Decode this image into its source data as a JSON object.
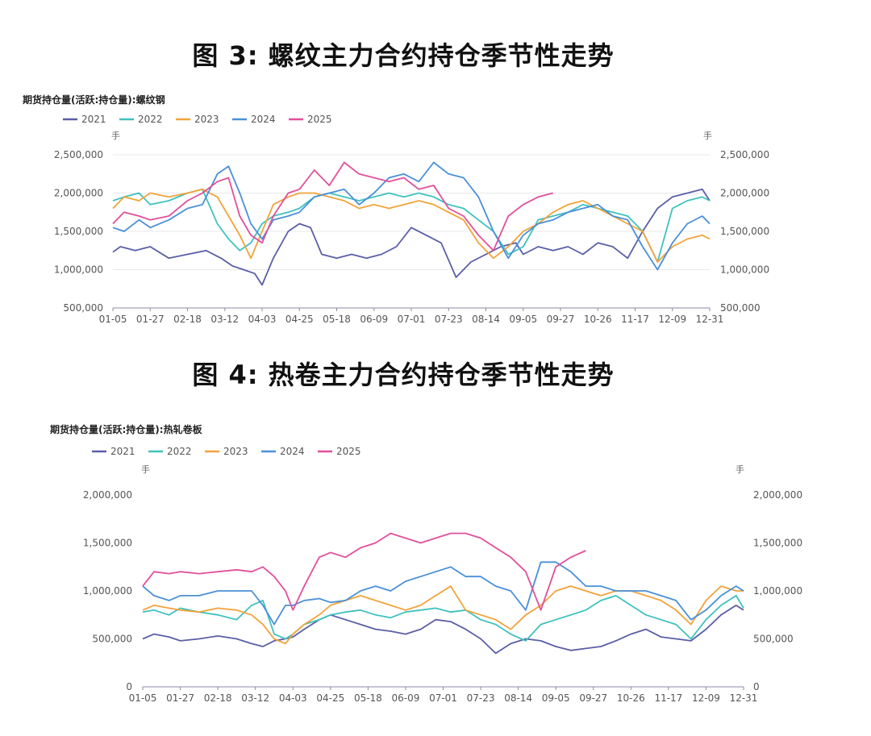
{
  "figures": [
    {
      "title": "图 3: 螺纹主力合约持仓季节性走势"
    },
    {
      "title": "图 4: 热卷主力合约持仓季节性走势"
    }
  ],
  "colors": {
    "2021": "#5b5ea6",
    "2022": "#3fc2bf",
    "2023": "#f2a33a",
    "2024": "#4a90d9",
    "2025": "#e24f9a"
  },
  "chart_data": [
    {
      "type": "line",
      "title": "期货持仓量(活跃:持仓量):螺纹钢",
      "unit_left": "手",
      "unit_right": "手",
      "ylim": [
        500000,
        2500000
      ],
      "yticks": [
        500000,
        1000000,
        1500000,
        2000000,
        2500000
      ],
      "ytick_labels": [
        "500,000",
        "1,000,000",
        "1,500,000",
        "2,000,000",
        "2,500,000"
      ],
      "xticks": [
        "01-05",
        "01-27",
        "02-18",
        "03-12",
        "04-03",
        "04-25",
        "05-18",
        "06-09",
        "07-01",
        "07-23",
        "08-14",
        "09-05",
        "09-27",
        "10-26",
        "11-17",
        "12-09",
        "12-31"
      ],
      "grid": true,
      "legend_position": "top-left",
      "series": [
        {
          "name": "2021",
          "x": [
            0,
            0.2,
            0.6,
            1,
            1.5,
            2,
            2.5,
            2.9,
            3.2,
            3.5,
            3.8,
            4,
            4.3,
            4.7,
            5,
            5.3,
            5.6,
            6,
            6.4,
            6.8,
            7.2,
            7.6,
            8,
            8.4,
            8.8,
            9.2,
            9.6,
            10,
            10.4,
            10.8,
            11,
            11.4,
            11.8,
            12.2,
            12.6,
            13,
            13.4,
            13.8,
            14.2,
            14.6,
            15,
            15.4,
            15.8,
            16
          ],
          "values": [
            1230000,
            1300000,
            1250000,
            1300000,
            1150000,
            1200000,
            1250000,
            1150000,
            1050000,
            1000000,
            950000,
            800000,
            1150000,
            1500000,
            1600000,
            1550000,
            1200000,
            1150000,
            1200000,
            1150000,
            1200000,
            1300000,
            1550000,
            1450000,
            1350000,
            900000,
            1100000,
            1200000,
            1300000,
            1350000,
            1200000,
            1300000,
            1250000,
            1300000,
            1200000,
            1350000,
            1300000,
            1150000,
            1500000,
            1800000,
            1950000,
            2000000,
            2050000,
            1900000
          ]
        },
        {
          "name": "2022",
          "x": [
            0,
            0.3,
            0.7,
            1,
            1.5,
            2,
            2.4,
            2.8,
            3.1,
            3.4,
            3.7,
            4,
            4.3,
            4.7,
            5,
            5.4,
            5.8,
            6.2,
            6.6,
            7,
            7.4,
            7.8,
            8.2,
            8.6,
            9,
            9.4,
            9.8,
            10.2,
            10.6,
            11,
            11.4,
            11.8,
            12.2,
            12.6,
            13,
            13.4,
            13.8,
            14.2,
            14.6,
            15,
            15.4,
            15.8,
            16
          ],
          "values": [
            1900000,
            1950000,
            2000000,
            1850000,
            1900000,
            2000000,
            2050000,
            1600000,
            1400000,
            1250000,
            1350000,
            1600000,
            1700000,
            1750000,
            1800000,
            1950000,
            2000000,
            1950000,
            1900000,
            1950000,
            2000000,
            1950000,
            2000000,
            1950000,
            1850000,
            1800000,
            1650000,
            1500000,
            1200000,
            1300000,
            1650000,
            1700000,
            1750000,
            1850000,
            1800000,
            1750000,
            1700000,
            1500000,
            1100000,
            1800000,
            1900000,
            1950000,
            1900000
          ]
        },
        {
          "name": "2023",
          "x": [
            0,
            0.3,
            0.7,
            1,
            1.5,
            2,
            2.4,
            2.8,
            3.1,
            3.4,
            3.7,
            4,
            4.3,
            4.7,
            5,
            5.4,
            5.8,
            6.2,
            6.6,
            7,
            7.4,
            7.8,
            8.2,
            8.6,
            9,
            9.4,
            9.8,
            10.2,
            10.6,
            11,
            11.4,
            11.8,
            12.2,
            12.6,
            13,
            13.4,
            13.8,
            14.2,
            14.6,
            15,
            15.4,
            15.8,
            16
          ],
          "values": [
            1800000,
            1950000,
            1900000,
            2000000,
            1950000,
            2000000,
            2050000,
            1950000,
            1700000,
            1450000,
            1150000,
            1500000,
            1850000,
            1950000,
            2000000,
            2000000,
            1950000,
            1900000,
            1800000,
            1850000,
            1800000,
            1850000,
            1900000,
            1850000,
            1750000,
            1650000,
            1350000,
            1150000,
            1300000,
            1500000,
            1600000,
            1750000,
            1850000,
            1900000,
            1800000,
            1700000,
            1600000,
            1500000,
            1100000,
            1300000,
            1400000,
            1450000,
            1400000
          ]
        },
        {
          "name": "2024",
          "x": [
            0,
            0.3,
            0.7,
            1,
            1.5,
            2,
            2.4,
            2.8,
            3.1,
            3.4,
            3.7,
            4,
            4.3,
            4.7,
            5,
            5.4,
            5.8,
            6.2,
            6.6,
            7,
            7.4,
            7.8,
            8.2,
            8.6,
            9,
            9.4,
            9.8,
            10.2,
            10.6,
            11,
            11.4,
            11.8,
            12.2,
            12.6,
            13,
            13.4,
            13.8,
            14.2,
            14.6,
            15,
            15.4,
            15.8,
            16
          ],
          "values": [
            1550000,
            1500000,
            1650000,
            1550000,
            1650000,
            1800000,
            1850000,
            2250000,
            2350000,
            2000000,
            1600000,
            1400000,
            1650000,
            1700000,
            1750000,
            1950000,
            2000000,
            2050000,
            1850000,
            2000000,
            2200000,
            2250000,
            2150000,
            2400000,
            2250000,
            2200000,
            1950000,
            1500000,
            1150000,
            1450000,
            1600000,
            1650000,
            1750000,
            1800000,
            1850000,
            1700000,
            1650000,
            1300000,
            1000000,
            1350000,
            1600000,
            1700000,
            1600000
          ]
        },
        {
          "name": "2025",
          "x": [
            0,
            0.3,
            0.7,
            1,
            1.5,
            2,
            2.4,
            2.8,
            3.1,
            3.4,
            3.7,
            4,
            4.3,
            4.7,
            5,
            5.4,
            5.8,
            6.2,
            6.6,
            7,
            7.4,
            7.8,
            8.2,
            8.6,
            9,
            9.4,
            9.8,
            10.2,
            10.6,
            11,
            11.4,
            11.8
          ],
          "values": [
            1600000,
            1750000,
            1700000,
            1650000,
            1700000,
            1900000,
            2000000,
            2150000,
            2200000,
            1700000,
            1450000,
            1350000,
            1700000,
            2000000,
            2050000,
            2300000,
            2100000,
            2400000,
            2250000,
            2200000,
            2150000,
            2200000,
            2050000,
            2100000,
            1800000,
            1700000,
            1450000,
            1250000,
            1700000,
            1850000,
            1950000,
            2000000
          ]
        }
      ]
    },
    {
      "type": "line",
      "title": "期货持仓量(活跃:持仓量):热轧卷板",
      "unit_left": "手",
      "unit_right": "手",
      "ylim": [
        0,
        2000000
      ],
      "yticks": [
        0,
        500000,
        1000000,
        1500000,
        2000000
      ],
      "ytick_labels": [
        "0",
        "500,000",
        "1,000,000",
        "1,500,000",
        "2,000,000"
      ],
      "xticks": [
        "01-05",
        "01-27",
        "02-18",
        "03-12",
        "04-03",
        "04-25",
        "05-18",
        "06-09",
        "07-01",
        "07-23",
        "08-14",
        "09-05",
        "09-27",
        "10-26",
        "11-17",
        "12-09",
        "12-31"
      ],
      "grid": false,
      "legend_position": "top-left",
      "series": [
        {
          "name": "2021",
          "x": [
            0,
            0.3,
            0.7,
            1,
            1.5,
            2,
            2.5,
            2.9,
            3.2,
            3.5,
            3.8,
            4,
            4.3,
            4.7,
            5,
            5.4,
            5.8,
            6.2,
            6.6,
            7,
            7.4,
            7.8,
            8.2,
            8.6,
            9,
            9.4,
            9.8,
            10.2,
            10.6,
            11,
            11.4,
            11.8,
            12.2,
            12.6,
            13,
            13.4,
            13.8,
            14.2,
            14.6,
            15,
            15.4,
            15.8,
            16
          ],
          "values": [
            500000,
            550000,
            520000,
            480000,
            500000,
            530000,
            500000,
            450000,
            420000,
            480000,
            500000,
            520000,
            600000,
            700000,
            750000,
            700000,
            650000,
            600000,
            580000,
            550000,
            600000,
            700000,
            680000,
            600000,
            500000,
            350000,
            450000,
            500000,
            480000,
            420000,
            380000,
            400000,
            420000,
            480000,
            550000,
            600000,
            520000,
            500000,
            480000,
            600000,
            750000,
            850000,
            800000
          ]
        },
        {
          "name": "2022",
          "x": [
            0,
            0.3,
            0.7,
            1,
            1.5,
            2,
            2.5,
            2.9,
            3.2,
            3.5,
            3.8,
            4,
            4.3,
            4.7,
            5,
            5.4,
            5.8,
            6.2,
            6.6,
            7,
            7.4,
            7.8,
            8.2,
            8.6,
            9,
            9.4,
            9.8,
            10.2,
            10.6,
            11,
            11.4,
            11.8,
            12.2,
            12.6,
            13,
            13.4,
            13.8,
            14.2,
            14.6,
            15,
            15.4,
            15.8,
            16
          ],
          "values": [
            780000,
            800000,
            750000,
            820000,
            780000,
            750000,
            700000,
            850000,
            900000,
            550000,
            500000,
            550000,
            650000,
            700000,
            750000,
            780000,
            800000,
            750000,
            720000,
            780000,
            800000,
            820000,
            780000,
            800000,
            700000,
            650000,
            550000,
            480000,
            650000,
            700000,
            750000,
            800000,
            900000,
            950000,
            850000,
            750000,
            700000,
            650000,
            500000,
            700000,
            850000,
            950000,
            820000
          ]
        },
        {
          "name": "2023",
          "x": [
            0,
            0.3,
            0.7,
            1,
            1.5,
            2,
            2.5,
            2.9,
            3.2,
            3.5,
            3.8,
            4,
            4.3,
            4.7,
            5,
            5.4,
            5.8,
            6.2,
            6.6,
            7,
            7.4,
            7.8,
            8.2,
            8.6,
            9,
            9.4,
            9.8,
            10.2,
            10.6,
            11,
            11.4,
            11.8,
            12.2,
            12.6,
            13,
            13.4,
            13.8,
            14.2,
            14.6,
            15,
            15.4,
            15.8,
            16
          ],
          "values": [
            800000,
            850000,
            820000,
            800000,
            780000,
            820000,
            800000,
            750000,
            650000,
            500000,
            450000,
            550000,
            650000,
            750000,
            850000,
            900000,
            950000,
            900000,
            850000,
            800000,
            850000,
            950000,
            1050000,
            800000,
            750000,
            700000,
            600000,
            750000,
            850000,
            1000000,
            1050000,
            1000000,
            950000,
            1000000,
            1000000,
            950000,
            900000,
            800000,
            650000,
            900000,
            1050000,
            1000000,
            1000000
          ]
        },
        {
          "name": "2024",
          "x": [
            0,
            0.3,
            0.7,
            1,
            1.5,
            2,
            2.5,
            2.9,
            3.2,
            3.5,
            3.8,
            4,
            4.3,
            4.7,
            5,
            5.4,
            5.8,
            6.2,
            6.6,
            7,
            7.4,
            7.8,
            8.2,
            8.6,
            9,
            9.4,
            9.8,
            10.2,
            10.6,
            11,
            11.4,
            11.8,
            12.2,
            12.6,
            13,
            13.4,
            13.8,
            14.2,
            14.6,
            15,
            15.4,
            15.8,
            16
          ],
          "values": [
            1050000,
            950000,
            900000,
            950000,
            950000,
            1000000,
            1000000,
            1000000,
            850000,
            650000,
            850000,
            850000,
            900000,
            920000,
            880000,
            900000,
            1000000,
            1050000,
            1000000,
            1100000,
            1150000,
            1200000,
            1250000,
            1150000,
            1150000,
            1050000,
            1000000,
            800000,
            1300000,
            1300000,
            1200000,
            1050000,
            1050000,
            1000000,
            1000000,
            1000000,
            950000,
            900000,
            700000,
            800000,
            950000,
            1050000,
            1000000
          ]
        },
        {
          "name": "2025",
          "x": [
            0,
            0.3,
            0.7,
            1,
            1.5,
            2,
            2.5,
            2.9,
            3.2,
            3.5,
            3.8,
            4,
            4.3,
            4.7,
            5,
            5.4,
            5.8,
            6.2,
            6.6,
            7,
            7.4,
            7.8,
            8.2,
            8.6,
            9,
            9.4,
            9.8,
            10.2,
            10.6,
            11,
            11.4,
            11.8
          ],
          "values": [
            1050000,
            1200000,
            1180000,
            1200000,
            1180000,
            1200000,
            1220000,
            1200000,
            1250000,
            1150000,
            1000000,
            800000,
            1050000,
            1350000,
            1400000,
            1350000,
            1450000,
            1500000,
            1600000,
            1550000,
            1500000,
            1550000,
            1600000,
            1600000,
            1550000,
            1450000,
            1350000,
            1200000,
            800000,
            1250000,
            1350000,
            1420000
          ]
        }
      ]
    }
  ]
}
